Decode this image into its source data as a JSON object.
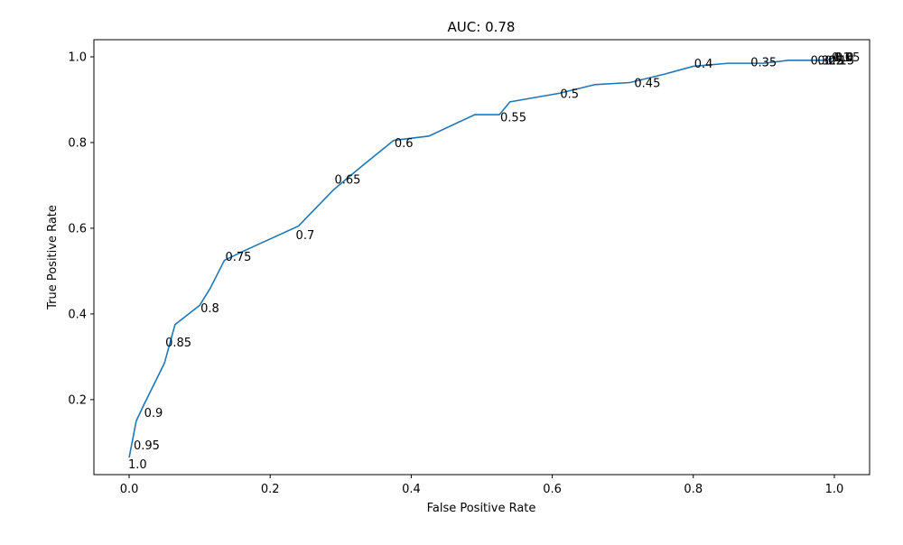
{
  "chart_data": {
    "type": "line",
    "title": "AUC: 0.78",
    "xlabel": "False Positive Rate",
    "ylabel": "True Positive Rate",
    "xlim": [
      -0.05,
      1.05
    ],
    "ylim": [
      0.025,
      1.04
    ],
    "grid": false,
    "legend": "none",
    "line_color": "#1f77b4",
    "xticks": [
      {
        "value": 0.0,
        "label": "0.0"
      },
      {
        "value": 0.2,
        "label": "0.2"
      },
      {
        "value": 0.4,
        "label": "0.4"
      },
      {
        "value": 0.6,
        "label": "0.6"
      },
      {
        "value": 0.8,
        "label": "0.8"
      },
      {
        "value": 1.0,
        "label": "1.0"
      }
    ],
    "yticks": [
      {
        "value": 0.2,
        "label": "0.2"
      },
      {
        "value": 0.4,
        "label": "0.4"
      },
      {
        "value": 0.6,
        "label": "0.6"
      },
      {
        "value": 0.8,
        "label": "0.8"
      },
      {
        "value": 1.0,
        "label": "1.0"
      }
    ],
    "series": [
      {
        "x": [
          0.0,
          0.01,
          0.02,
          0.035,
          0.05,
          0.065,
          0.1,
          0.115,
          0.135,
          0.16,
          0.2,
          0.24,
          0.29,
          0.33,
          0.375,
          0.425,
          0.49,
          0.525,
          0.54,
          0.61,
          0.66,
          0.71,
          0.76,
          0.8,
          0.85,
          0.9,
          0.935,
          0.97,
          0.99,
          1.0
        ],
        "y": [
          0.065,
          0.15,
          0.185,
          0.235,
          0.285,
          0.375,
          0.42,
          0.46,
          0.525,
          0.545,
          0.575,
          0.605,
          0.69,
          0.745,
          0.805,
          0.815,
          0.865,
          0.865,
          0.895,
          0.915,
          0.935,
          0.94,
          0.96,
          0.978,
          0.985,
          0.985,
          0.992,
          0.992,
          0.992,
          1.0
        ]
      }
    ],
    "annotations": [
      {
        "text": "1.0",
        "x": 0.0,
        "y": 0.065,
        "offset": "below"
      },
      {
        "text": "0.95",
        "x": 0.005,
        "y": 0.095,
        "offset": "right"
      },
      {
        "text": "0.9",
        "x": 0.02,
        "y": 0.17,
        "offset": "right"
      },
      {
        "text": "0.85",
        "x": 0.05,
        "y": 0.335,
        "offset": "right"
      },
      {
        "text": "0.8",
        "x": 0.1,
        "y": 0.415,
        "offset": "right"
      },
      {
        "text": "0.75",
        "x": 0.135,
        "y": 0.535,
        "offset": "right"
      },
      {
        "text": "0.7",
        "x": 0.235,
        "y": 0.585,
        "offset": "right"
      },
      {
        "text": "0.65",
        "x": 0.29,
        "y": 0.715,
        "offset": "right"
      },
      {
        "text": "0.6",
        "x": 0.375,
        "y": 0.8,
        "offset": "right"
      },
      {
        "text": "0.55",
        "x": 0.525,
        "y": 0.86,
        "offset": "right"
      },
      {
        "text": "0.5",
        "x": 0.61,
        "y": 0.915,
        "offset": "right"
      },
      {
        "text": "0.45",
        "x": 0.715,
        "y": 0.94,
        "offset": "right"
      },
      {
        "text": "0.4",
        "x": 0.8,
        "y": 0.985,
        "offset": "right"
      },
      {
        "text": "0.35",
        "x": 0.88,
        "y": 0.988,
        "offset": "right"
      },
      {
        "text": "0.3",
        "x": 0.965,
        "y": 0.993,
        "offset": "right"
      },
      {
        "text": "0.25",
        "x": 0.975,
        "y": 0.993,
        "offset": "right"
      },
      {
        "text": "0.2",
        "x": 0.985,
        "y": 0.993,
        "offset": "right"
      },
      {
        "text": "0.15",
        "x": 0.99,
        "y": 0.993,
        "offset": "right"
      },
      {
        "text": "0.1",
        "x": 0.995,
        "y": 1.0,
        "offset": "right"
      },
      {
        "text": "0.05",
        "x": 0.998,
        "y": 1.0,
        "offset": "right"
      },
      {
        "text": "0.0",
        "x": 1.0,
        "y": 1.0,
        "offset": "right"
      }
    ]
  }
}
